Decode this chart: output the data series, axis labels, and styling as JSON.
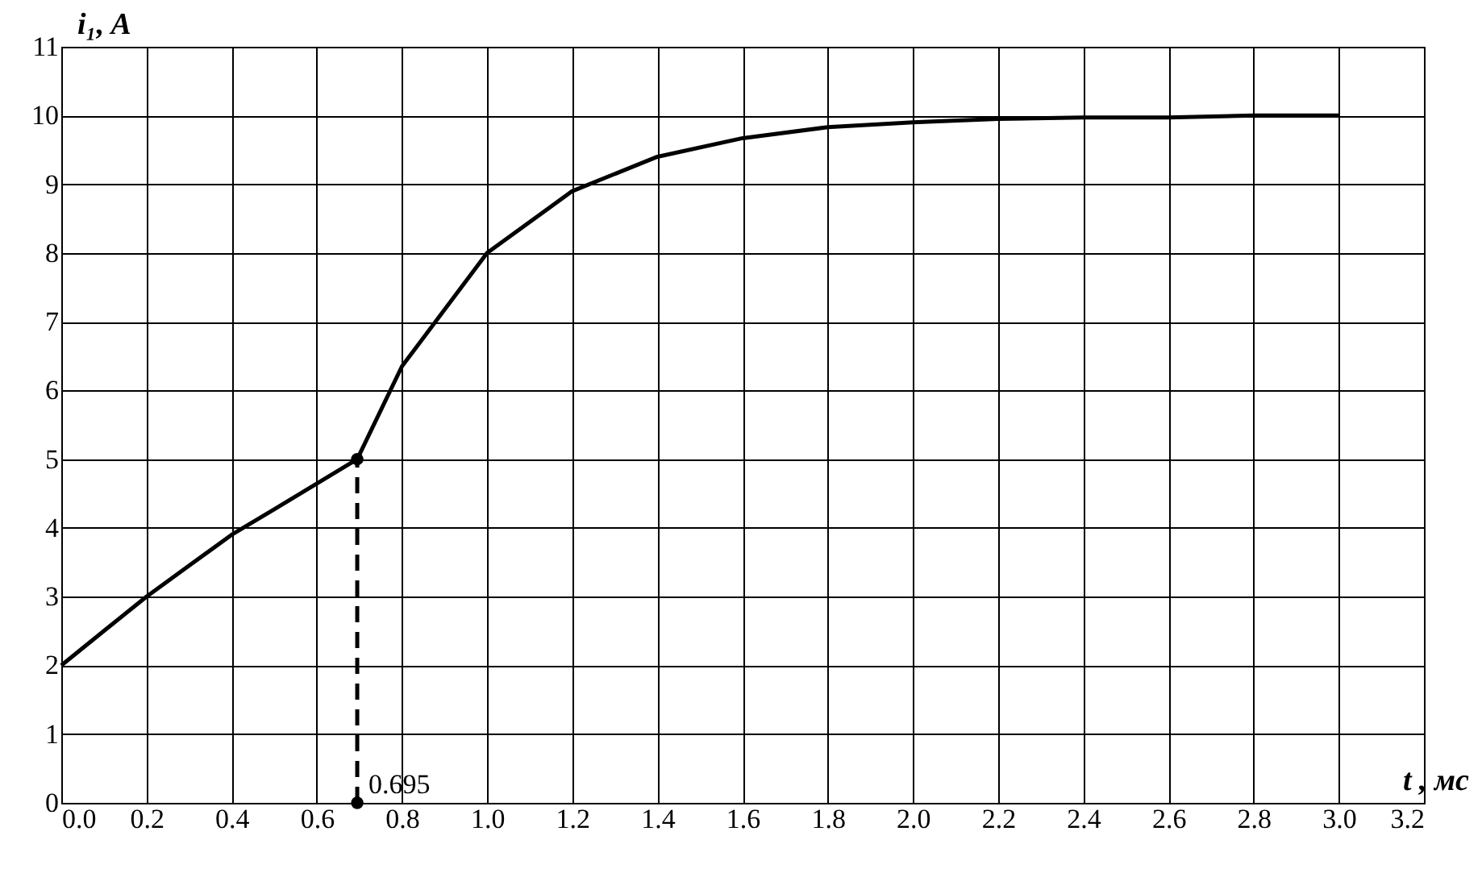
{
  "chart_data": {
    "type": "line",
    "xlabel": "t , мс",
    "ylabel": "i₁, A",
    "xlim": [
      0,
      3.2
    ],
    "ylim": [
      0,
      11
    ],
    "xticks": [
      {
        "value": 0,
        "label": "0.0"
      },
      0.2,
      0.4,
      0.6,
      0.8,
      {
        "value": 1,
        "label": "1.0"
      },
      1.2,
      1.4,
      1.6,
      1.8,
      {
        "value": 2,
        "label": "2.0"
      },
      2.2,
      2.4,
      2.6,
      2.8,
      {
        "value": 3,
        "label": "3.0"
      },
      3.2
    ],
    "yticks": [
      0,
      1,
      2,
      3,
      4,
      5,
      6,
      7,
      8,
      9,
      10,
      11
    ],
    "grid": true,
    "series": [
      {
        "color": "#000000",
        "line_style": "solid",
        "x": [
          0,
          0.1,
          0.2,
          0.3,
          0.4,
          0.5,
          0.695,
          0.8,
          1.0,
          1.2,
          1.4,
          1.6,
          1.8,
          2.0,
          2.2,
          2.4,
          2.6,
          2.8,
          3.0
        ],
        "values": [
          2,
          2.5,
          3.0,
          3.45,
          3.9,
          4.27,
          5.0,
          6.35,
          8.0,
          8.9,
          9.4,
          9.67,
          9.83,
          9.9,
          9.95,
          9.97,
          9.97,
          10.0,
          10.0
        ]
      },
      {
        "color": "#000000",
        "line_style": "dashed",
        "x": [
          0.695,
          0.695
        ],
        "values": [
          0,
          5
        ]
      },
      {
        "type": "scatter",
        "color": "#000000",
        "marker": "circle",
        "x": [
          0.695,
          0.695
        ],
        "values": [
          5,
          0
        ]
      }
    ],
    "annotations": [
      {
        "text": "0.695",
        "x": 0.695,
        "y": 0
      }
    ]
  }
}
